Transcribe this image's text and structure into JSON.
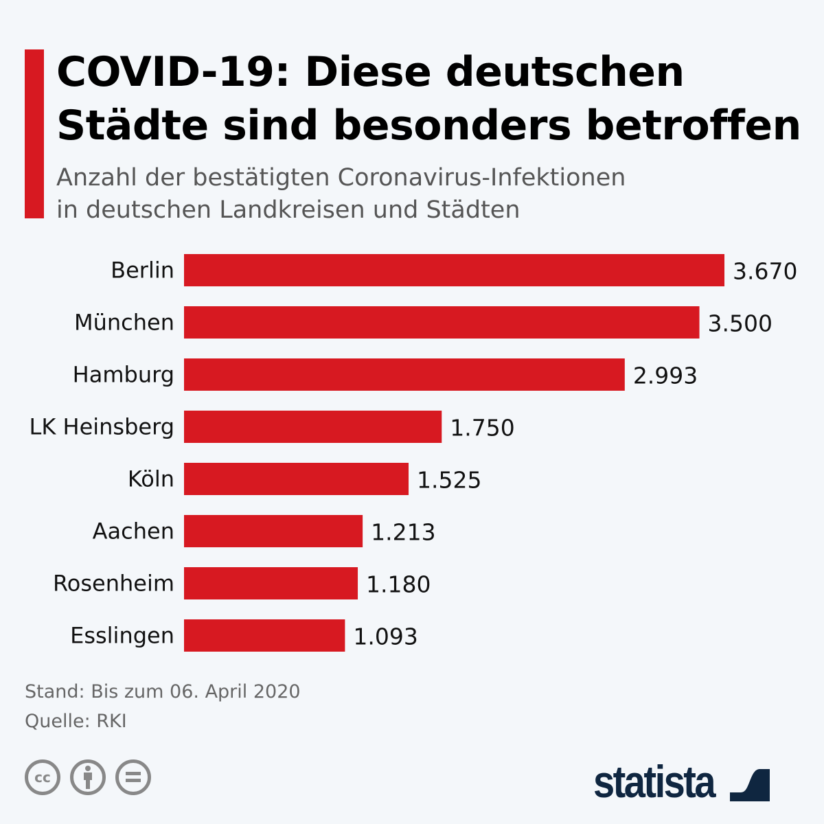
{
  "title_line1": "COVID-19: Diese deutschen",
  "title_line2": "Städte sind besonders betroffen",
  "subtitle_line1": "Anzahl der bestätigten Coronavirus-Infektionen",
  "subtitle_line2": "in deutschen Landkreisen und Städten",
  "footer": {
    "stand": "Stand: Bis zum 06. April 2020",
    "quelle": "Quelle: RKI",
    "logo": "statista"
  },
  "colors": {
    "bar": "#d71921",
    "accent": "#d71921",
    "logo": "#0f2640"
  },
  "icons": [
    "creative-commons-icon",
    "attribution-icon",
    "no-derivatives-icon"
  ],
  "chart_data": {
    "type": "bar",
    "orientation": "horizontal",
    "categories": [
      "Berlin",
      "München",
      "Hamburg",
      "LK Heinsberg",
      "Köln",
      "Aachen",
      "Rosenheim",
      "Esslingen"
    ],
    "values": [
      3670,
      3500,
      2993,
      1750,
      1525,
      1213,
      1180,
      1093
    ],
    "value_labels": [
      "3.670",
      "3.500",
      "2.993",
      "1.750",
      "1.525",
      "1.213",
      "1.180",
      "1.093"
    ],
    "grid": false,
    "xlim": [
      0,
      3670
    ]
  }
}
